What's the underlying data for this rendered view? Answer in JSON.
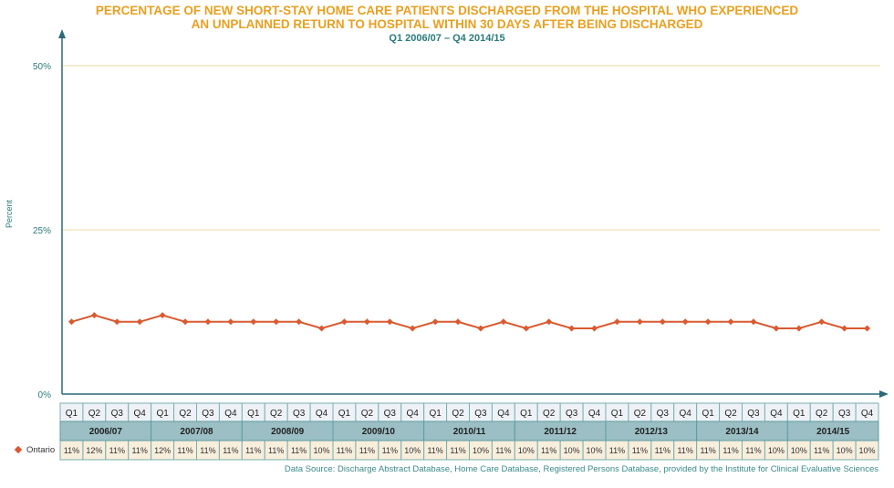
{
  "chart_data": {
    "type": "line",
    "title": "PERCENTAGE OF NEW SHORT-STAY HOME CARE PATIENTS DISCHARGED FROM THE HOSPITAL WHO EXPERIENCED AN UNPLANNED RETURN TO HOSPITAL WITHIN 30 DAYS AFTER BEING DISCHARGED",
    "title_line1": "PERCENTAGE OF NEW SHORT-STAY HOME CARE PATIENTS DISCHARGED FROM THE HOSPITAL WHO EXPERIENCED",
    "title_line2": "AN UNPLANNED RETURN TO HOSPITAL WITHIN 30 DAYS AFTER BEING DISCHARGED",
    "subtitle": "Q1 2006/07 – Q4 2014/15",
    "ylabel": "Percent",
    "ylim": [
      0,
      50
    ],
    "yticks": [
      "0%",
      "25%",
      "50%"
    ],
    "grid": true,
    "quarters": [
      "Q1",
      "Q2",
      "Q3",
      "Q4"
    ],
    "years": [
      "2006/07",
      "2007/08",
      "2008/09",
      "2009/10",
      "2010/11",
      "2011/12",
      "2012/13",
      "2013/14",
      "2014/15"
    ],
    "series": [
      {
        "name": "Ontario",
        "color": "#d95a30",
        "values": [
          11,
          12,
          11,
          11,
          12,
          11,
          11,
          11,
          11,
          11,
          11,
          10,
          11,
          11,
          11,
          10,
          11,
          11,
          10,
          11,
          10,
          11,
          10,
          10,
          11,
          11,
          11,
          11,
          11,
          11,
          11,
          10,
          10,
          11,
          10,
          10
        ]
      }
    ],
    "source": "Data Source: Discharge Abstract Database, Home Care Database, Registered Persons Database, provided by the Institute for Clinical Evaluative Sciences"
  }
}
